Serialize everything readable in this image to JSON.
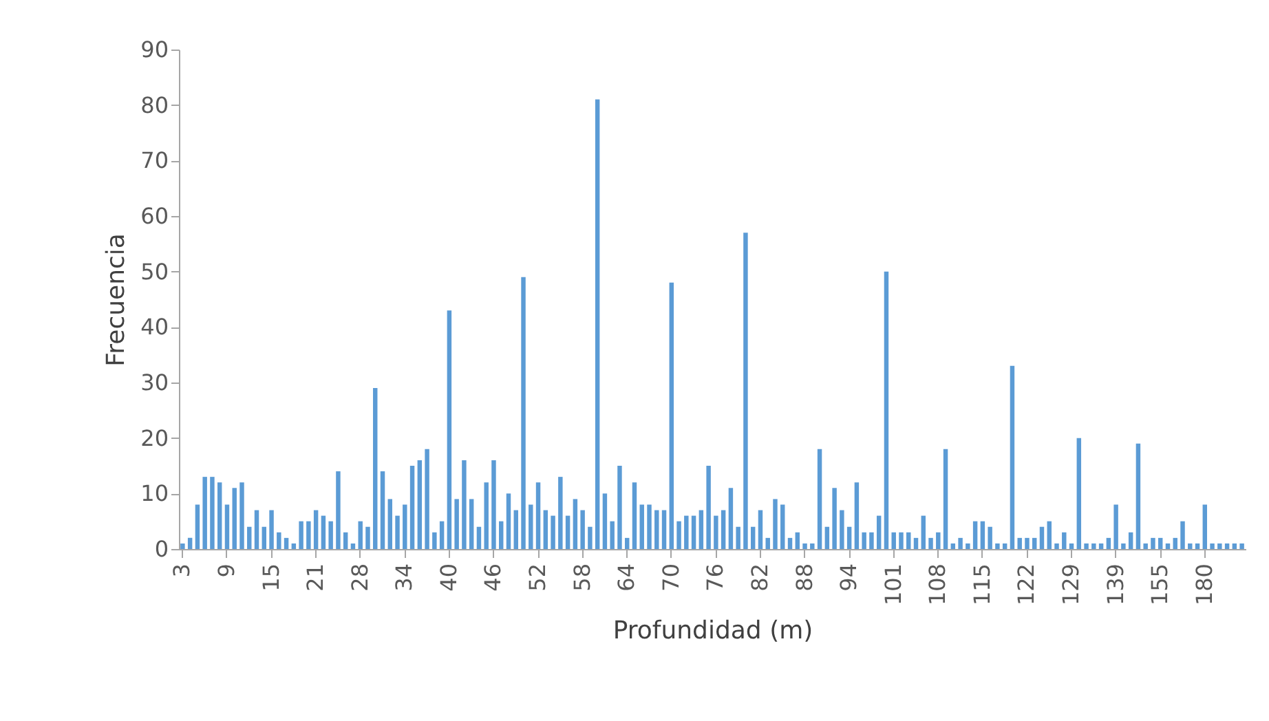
{
  "chart_data": {
    "type": "bar",
    "xlabel": "Profundidad (m)",
    "ylabel": "Frecuencia",
    "color": "#5b9bd5",
    "categories": [
      "3",
      null,
      null,
      null,
      null,
      null,
      "9",
      null,
      null,
      null,
      null,
      null,
      "15",
      null,
      null,
      null,
      null,
      null,
      "21",
      null,
      null,
      null,
      null,
      null,
      "28",
      null,
      null,
      null,
      null,
      null,
      "34",
      null,
      null,
      null,
      null,
      null,
      "40",
      null,
      null,
      null,
      null,
      null,
      "46",
      null,
      null,
      null,
      null,
      null,
      "52",
      null,
      null,
      null,
      null,
      null,
      "58",
      null,
      null,
      null,
      null,
      null,
      "64",
      null,
      null,
      null,
      null,
      null,
      "70",
      null,
      null,
      null,
      null,
      null,
      "76",
      null,
      null,
      null,
      null,
      null,
      "82",
      null,
      null,
      null,
      null,
      null,
      "88",
      null,
      null,
      null,
      null,
      null,
      "94",
      null,
      null,
      null,
      null,
      null,
      "101",
      null,
      null,
      null,
      null,
      null,
      "108",
      null,
      null,
      null,
      null,
      null,
      "115",
      null,
      null,
      null,
      null,
      null,
      "122",
      null,
      null,
      null,
      null,
      null,
      "129",
      null,
      null,
      null,
      null,
      null,
      "139",
      null,
      null,
      null,
      null,
      null,
      "155",
      null,
      null,
      null,
      null,
      null,
      "180",
      null,
      null,
      null,
      null,
      null
    ],
    "values": [
      1,
      2,
      8,
      13,
      13,
      12,
      8,
      11,
      12,
      4,
      7,
      4,
      7,
      3,
      2,
      1,
      5,
      5,
      7,
      6,
      5,
      14,
      3,
      1,
      5,
      4,
      29,
      14,
      9,
      6,
      8,
      15,
      16,
      18,
      3,
      5,
      43,
      9,
      16,
      9,
      4,
      12,
      16,
      5,
      10,
      7,
      49,
      8,
      12,
      7,
      6,
      13,
      6,
      9,
      7,
      4,
      81,
      10,
      5,
      15,
      2,
      12,
      8,
      8,
      7,
      7,
      48,
      5,
      6,
      6,
      7,
      15,
      6,
      7,
      11,
      4,
      57,
      4,
      7,
      2,
      9,
      8,
      2,
      3,
      1,
      1,
      18,
      4,
      11,
      7,
      4,
      12,
      3,
      3,
      6,
      50,
      3,
      3,
      3,
      2,
      6,
      2,
      3,
      18,
      1,
      2,
      1,
      5,
      5,
      4,
      1,
      1,
      33,
      2,
      2,
      2,
      4,
      5,
      1,
      3,
      1,
      20,
      1,
      1,
      1,
      2,
      8,
      1,
      3,
      19,
      1,
      2,
      2,
      1,
      2,
      5,
      1,
      1,
      8,
      1,
      1,
      1,
      1,
      1
    ],
    "ylim": [
      0,
      90
    ],
    "yticks": [
      0,
      10,
      20,
      30,
      40,
      50,
      60,
      70,
      80,
      90
    ],
    "grid": false
  }
}
